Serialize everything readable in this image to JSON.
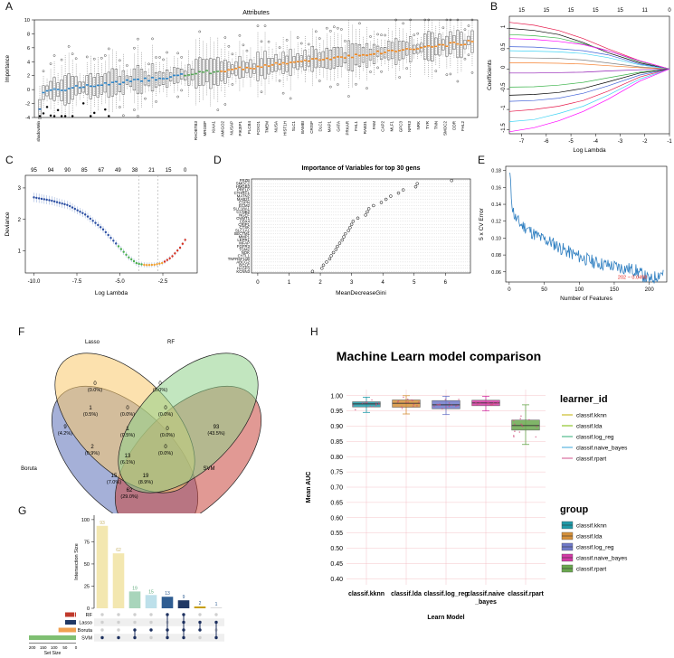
{
  "panel_labels": [
    "A",
    "B",
    "C",
    "D",
    "E",
    "F",
    "G",
    "H"
  ],
  "chart_data": [
    {
      "id": "A",
      "type": "box",
      "title": "Attributes",
      "ylabel": "Importance",
      "ylim": [
        -4,
        10
      ],
      "yticks": [
        -4,
        -2,
        0,
        2,
        4,
        6,
        8,
        10
      ],
      "n_boxes": 120,
      "tick_labels": [
        "shadowMin",
        "RHOBTB3",
        "MRGBP",
        "KIAA1",
        "AMIGO2",
        "NUSAP",
        "PIK3IP1",
        "PLCB4",
        "FOXO1",
        "TMEM",
        "NUSA",
        "HIST1H",
        "SLC1",
        "BAMBI",
        "CRISP",
        "DLC1",
        "MAP1",
        "GATA",
        "PRKAR",
        "FHL1",
        "RAB31",
        "FAM",
        "CAP2",
        "MLF1",
        "GPC3",
        "NPR3",
        "NRK",
        "TYR",
        "TNN",
        "SMOC2",
        "DDR",
        "FHL2"
      ]
    },
    {
      "id": "B",
      "type": "line",
      "xlabel": "Log Lambda",
      "ylabel": "Coefficients",
      "xlim": [
        -7.5,
        -1
      ],
      "ylim": [
        -1.6,
        1.3
      ],
      "xticks": [
        -7,
        -6,
        -5,
        -4,
        -3,
        -2,
        -1
      ],
      "yticks": [
        -1.5,
        -1,
        -0.5,
        0,
        0.5,
        1
      ],
      "top_axis": [
        15,
        15,
        15,
        15,
        15,
        11,
        0
      ],
      "series": [
        {
          "values": [
            1.15,
            1.08,
            0.95,
            0.75,
            0.5,
            0.2,
            0.0
          ],
          "color": "#e6194b"
        },
        {
          "values": [
            1.0,
            0.95,
            0.85,
            0.65,
            0.4,
            0.15,
            0.0
          ],
          "color": "#000000"
        },
        {
          "values": [
            0.85,
            0.82,
            0.76,
            0.62,
            0.45,
            0.18,
            0.0
          ],
          "color": "#3cb44b"
        },
        {
          "values": [
            0.75,
            0.73,
            0.68,
            0.6,
            0.45,
            0.2,
            0.0
          ],
          "color": "#ff00ff"
        },
        {
          "values": [
            0.55,
            0.54,
            0.5,
            0.45,
            0.35,
            0.12,
            0.0
          ],
          "color": "#4363d8"
        },
        {
          "values": [
            0.45,
            0.44,
            0.42,
            0.38,
            0.28,
            0.1,
            0.0
          ],
          "color": "#42d4f4"
        },
        {
          "values": [
            0.28,
            0.27,
            0.26,
            0.22,
            0.15,
            0.05,
            0.0
          ],
          "color": "#808080"
        },
        {
          "values": [
            0.15,
            0.15,
            0.14,
            0.12,
            0.08,
            0.03,
            0.0
          ],
          "color": "#f58231"
        },
        {
          "values": [
            -0.1,
            -0.1,
            -0.09,
            -0.08,
            -0.05,
            -0.02,
            0.0
          ],
          "color": "#911eb4"
        },
        {
          "values": [
            -0.45,
            -0.44,
            -0.4,
            -0.33,
            -0.22,
            -0.08,
            0.0
          ],
          "color": "#3cb44b"
        },
        {
          "values": [
            -0.65,
            -0.63,
            -0.58,
            -0.48,
            -0.32,
            -0.1,
            0.0
          ],
          "color": "#000000"
        },
        {
          "values": [
            -0.8,
            -0.78,
            -0.72,
            -0.6,
            -0.42,
            -0.15,
            0.0
          ],
          "color": "#4363d8"
        },
        {
          "values": [
            -1.05,
            -1.0,
            -0.92,
            -0.78,
            -0.55,
            -0.2,
            0.0
          ],
          "color": "#e6194b"
        },
        {
          "values": [
            -1.3,
            -1.25,
            -1.1,
            -0.92,
            -0.65,
            -0.25,
            0.0
          ],
          "color": "#42d4f4"
        },
        {
          "values": [
            -1.55,
            -1.45,
            -1.28,
            -1.05,
            -0.75,
            -0.3,
            0.0
          ],
          "color": "#ff00ff"
        }
      ],
      "x": [
        -7.5,
        -6.5,
        -5.5,
        -4.5,
        -3.5,
        -2.2,
        -1.0
      ]
    },
    {
      "id": "C",
      "type": "scatter",
      "xlabel": "Log Lambda",
      "ylabel": "Deviance",
      "xlim": [
        -10.5,
        -0.5
      ],
      "ylim": [
        0.3,
        3.4
      ],
      "xticks": [
        -10.0,
        -7.5,
        -5.0,
        -2.5
      ],
      "xtick_labels": [
        "-10.0",
        "-7.5",
        "-5.0",
        "-2.5"
      ],
      "yticks": [
        1,
        2,
        3
      ],
      "top_axis": [
        95,
        94,
        90,
        85,
        67,
        49,
        38,
        21,
        15,
        0
      ],
      "vlines": [
        -3.9,
        -2.8
      ],
      "curve_x": [
        -10.0,
        -9.0,
        -8.0,
        -7.0,
        -6.0,
        -5.0,
        -4.5,
        -4.0,
        -3.5,
        -3.0,
        -2.5,
        -2.0,
        -1.5,
        -1.2
      ],
      "curve_y": [
        2.7,
        2.6,
        2.45,
        2.15,
        1.7,
        1.1,
        0.8,
        0.6,
        0.55,
        0.56,
        0.62,
        0.8,
        1.1,
        1.35
      ]
    },
    {
      "id": "D",
      "type": "scatter",
      "title": "Importance of Variables for top 30 gens",
      "xlabel": "MeanDecreaseGini",
      "xlim": [
        -0.2,
        6.8
      ],
      "xticks": [
        0,
        1,
        2,
        3,
        4,
        5,
        6
      ],
      "genes": [
        "FRZB",
        "SMOC2",
        "HMGB3",
        "PRELP",
        "CTHRC1",
        "MATN2",
        "MAB21",
        "ESPN",
        "ECM2",
        "SLC18A1",
        "CCNB2",
        "NGEF",
        "OVMT1",
        "CBX4",
        "CRIP1",
        "CTSK",
        "SLC1A1",
        "SECTM1",
        "MMP1",
        "LEPRL",
        "MFAP",
        "FGFR3",
        "TGM2",
        "NOK",
        "CYTL1",
        "TNFRSF11B",
        "ABCG2",
        "GCLC",
        "HASP3",
        "KCNN3"
      ],
      "values": [
        6.2,
        5.1,
        5.05,
        4.65,
        4.5,
        4.25,
        4.1,
        3.95,
        3.7,
        3.55,
        3.5,
        3.45,
        3.2,
        3.05,
        3.0,
        2.95,
        2.9,
        2.8,
        2.75,
        2.7,
        2.62,
        2.55,
        2.5,
        2.42,
        2.35,
        2.3,
        2.2,
        2.1,
        2.05,
        1.75
      ]
    },
    {
      "id": "E",
      "type": "line",
      "xlabel": "Number of Features",
      "ylabel": "5 x CV Error",
      "xlim": [
        -5,
        225
      ],
      "ylim": [
        0.048,
        0.185
      ],
      "xticks": [
        0,
        50,
        100,
        150,
        200
      ],
      "yticks": [
        0.06,
        0.08,
        0.1,
        0.12,
        0.14,
        0.16,
        0.18
      ],
      "annotation": "202 ~ 0.0498",
      "anchor_x": [
        1,
        3,
        5,
        8,
        12,
        18,
        25,
        35,
        45,
        60,
        80,
        100,
        120,
        140,
        160,
        180,
        202,
        215,
        220
      ],
      "anchor_y": [
        0.175,
        0.15,
        0.135,
        0.125,
        0.12,
        0.115,
        0.112,
        0.105,
        0.1,
        0.095,
        0.085,
        0.078,
        0.072,
        0.068,
        0.065,
        0.062,
        0.0498,
        0.058,
        0.06
      ]
    },
    {
      "id": "G",
      "type": "bar",
      "ylabel": "Intersection Size",
      "xlabel": "Set Size",
      "ylim": [
        0,
        105
      ],
      "yticks": [
        0,
        25,
        50,
        75,
        100
      ],
      "values": [
        93,
        62,
        19,
        15,
        13,
        9,
        2,
        1
      ],
      "bar_colors": [
        "#f3e7b0",
        "#f3e7b0",
        "#a8d5bb",
        "#bde0ea",
        "#2f5d92",
        "#203864",
        "#c69c00",
        "#d9d9d9"
      ],
      "sets": [
        "RF",
        "Lasso",
        "Boruta",
        "SVM"
      ],
      "set_colors": [
        "#c0392b",
        "#203864",
        "#f0a050",
        "#7fbf72"
      ],
      "set_sizes": [
        5,
        10,
        80,
        215
      ],
      "set_size_ticks": [
        "200",
        "150",
        "100",
        "50",
        "0"
      ],
      "matrix": [
        [
          3
        ],
        [
          3
        ],
        [
          2,
          3
        ],
        [
          2
        ],
        [
          0,
          2,
          3
        ],
        [
          0,
          1,
          2,
          3
        ],
        [
          1,
          2
        ],
        [
          1,
          3
        ]
      ]
    },
    {
      "id": "H",
      "type": "box",
      "title": "Machine Learn model comparison",
      "xlabel": "Learn Model",
      "ylabel": "Mean AUC",
      "ylim": [
        0.38,
        1.02
      ],
      "yticks": [
        0.4,
        0.45,
        0.5,
        0.55,
        0.6,
        0.65,
        0.7,
        0.75,
        0.8,
        0.85,
        0.9,
        0.95,
        1.0
      ],
      "ytick_labels": [
        "0.40",
        "0.45",
        "0.50",
        "0.55",
        "0.60",
        "0.65",
        "0.70",
        "0.75",
        "0.80",
        "0.85",
        "0.90",
        "0.95",
        "1.00"
      ],
      "categories": [
        "classif.kknn",
        "classif.lda",
        "classif.log_reg",
        "classif.naive_bayes",
        "classif.rpart"
      ],
      "category_lines": [
        [
          "classif.kknn"
        ],
        [
          "classif.lda"
        ],
        [
          "classif.log_reg"
        ],
        [
          "classif.naive",
          "_bayes"
        ],
        [
          "classif.rpart"
        ]
      ],
      "boxes": [
        {
          "min": 0.945,
          "q1": 0.963,
          "median": 0.973,
          "q3": 0.98,
          "max": 0.995,
          "color": "#1f9aa8"
        },
        {
          "min": 0.94,
          "q1": 0.962,
          "median": 0.975,
          "q3": 0.986,
          "max": 1.0,
          "color": "#d5903a"
        },
        {
          "min": 0.938,
          "q1": 0.957,
          "median": 0.97,
          "q3": 0.984,
          "max": 0.998,
          "color": "#6f79c9"
        },
        {
          "min": 0.95,
          "q1": 0.967,
          "median": 0.976,
          "q3": 0.985,
          "max": 0.998,
          "color": "#d33aa6"
        },
        {
          "min": 0.84,
          "q1": 0.887,
          "median": 0.902,
          "q3": 0.92,
          "max": 0.97,
          "color": "#6aa84f"
        }
      ],
      "legend1_title": "learner_id",
      "legend2_title": "group",
      "legend_items": [
        "classif.kknn",
        "classif.lda",
        "classif.log_reg",
        "classif.naive_bayes",
        "classif.rpart"
      ],
      "legend_line_colors": [
        "#c2b000",
        "#7ab800",
        "#2fae74",
        "#3aa6d9",
        "#d1508b"
      ]
    }
  ],
  "venn": {
    "id": "F",
    "sets": [
      "Lasso",
      "RF",
      "Boruta",
      "SVM"
    ],
    "colors": [
      "#f9c96b",
      "#8fd18a",
      "#5b6fb8",
      "#c9463d"
    ],
    "regions": [
      {
        "count": "0",
        "pct": "(0.0%)"
      },
      {
        "count": "0",
        "pct": "(0.0%)"
      },
      {
        "count": "1",
        "pct": "(0.5%)"
      },
      {
        "count": "0",
        "pct": "(0.0%)"
      },
      {
        "count": "0",
        "pct": "(0.0%)"
      },
      {
        "count": "9",
        "pct": "(4.2%)"
      },
      {
        "count": "93",
        "pct": "(43.5%)"
      },
      {
        "count": "1",
        "pct": "(0.5%)"
      },
      {
        "count": "0",
        "pct": "(0.0%)"
      },
      {
        "count": "2",
        "pct": "(0.9%)"
      },
      {
        "count": "0",
        "pct": "(0.0%)"
      },
      {
        "count": "13",
        "pct": "(6.1%)"
      },
      {
        "count": "15",
        "pct": "(7.0%)"
      },
      {
        "count": "19",
        "pct": "(8.9%)"
      },
      {
        "count": "62",
        "pct": "(29.0%)"
      }
    ]
  }
}
